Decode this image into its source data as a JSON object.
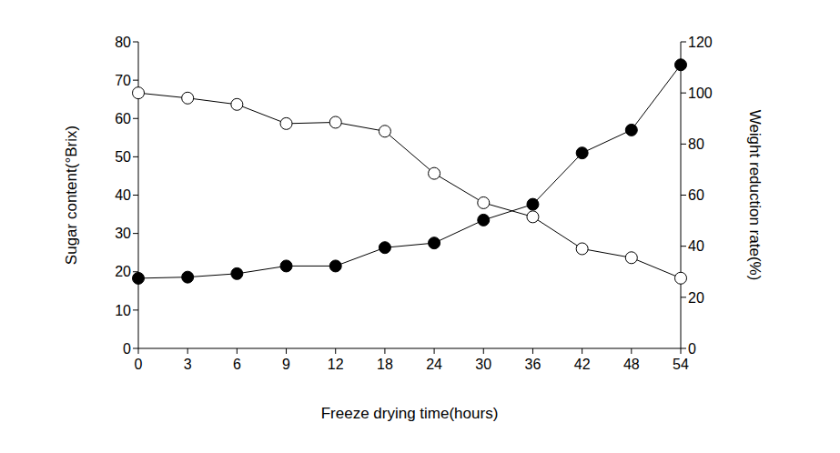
{
  "chart_data": {
    "type": "line",
    "x_label": "Freeze drying time(hours)",
    "y_label": "Sugar content(°Brix)",
    "y2_label": "Weight reduction rate(%)",
    "categories": [
      "0",
      "3",
      "6",
      "9",
      "12",
      "18",
      "24",
      "30",
      "36",
      "42",
      "48",
      "54"
    ],
    "ylim": [
      0,
      80
    ],
    "yticks": [
      0,
      10,
      20,
      30,
      40,
      50,
      60,
      70,
      80
    ],
    "y2lim": [
      0,
      120
    ],
    "y2ticks": [
      0,
      20,
      40,
      60,
      80,
      100,
      120
    ],
    "grid": false,
    "series": [
      {
        "color": "#000000",
        "marker": "circle",
        "axis": "y",
        "values": [
          18.3,
          18.6,
          19.5,
          21.5,
          21.5,
          26.3,
          27.5,
          33.5,
          37.6,
          51,
          57,
          74
        ]
      },
      {
        "color": "#000000",
        "marker": "open_circle",
        "axis": "y2",
        "values": [
          100,
          98,
          95.5,
          88,
          88.5,
          85,
          68.5,
          57,
          51.5,
          39,
          35.5,
          27.5
        ]
      }
    ]
  }
}
